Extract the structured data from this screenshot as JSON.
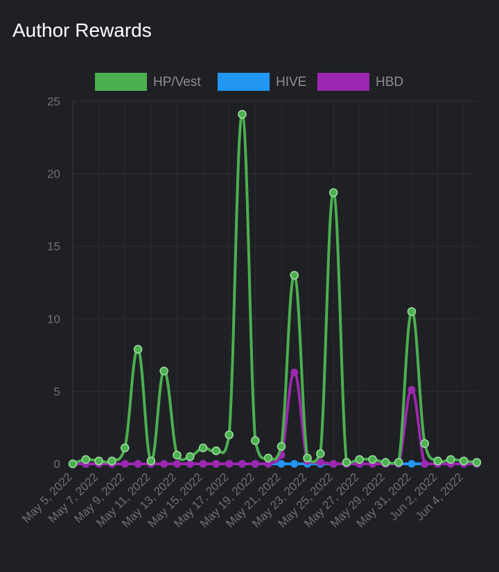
{
  "page": {
    "title": "Author Rewards"
  },
  "chart_data": {
    "type": "line",
    "title": "",
    "xlabel": "",
    "ylabel": "",
    "ylim": [
      0,
      25
    ],
    "yticks": [
      0,
      5,
      10,
      15,
      20,
      25
    ],
    "grid": true,
    "legend": "top-center",
    "x": [
      "May 5, 2022",
      "May 6, 2022",
      "May 7, 2022",
      "May 8, 2022",
      "May 9, 2022",
      "May 10, 2022",
      "May 11, 2022",
      "May 12, 2022",
      "May 13, 2022",
      "May 14, 2022",
      "May 15, 2022",
      "May 16, 2022",
      "May 17, 2022",
      "May 18, 2022",
      "May 19, 2022",
      "May 20, 2022",
      "May 21, 2022",
      "May 22, 2022",
      "May 23, 2022",
      "May 24, 2022",
      "May 25, 2022",
      "May 26, 2022",
      "May 27, 2022",
      "May 28, 2022",
      "May 29, 2022",
      "May 30, 2022",
      "May 31, 2022",
      "Jun 1, 2022",
      "Jun 2, 2022",
      "Jun 3, 2022",
      "Jun 4, 2022",
      "Jun 5, 2022"
    ],
    "xtick_labels": [
      "May 5, 2022",
      "May 7, 2022",
      "May 9, 2022",
      "May 11, 2022",
      "May 13, 2022",
      "May 15, 2022",
      "May 17, 2022",
      "May 19, 2022",
      "May 21, 2022",
      "May 23, 2022",
      "May 25, 2022",
      "May 27, 2022",
      "May 29, 2022",
      "May 31, 2022",
      "Jun 2, 2022",
      "Jun 4, 2022"
    ],
    "series": [
      {
        "name": "HP/Vest",
        "color": "#4caf50",
        "values": [
          0.0,
          0.3,
          0.2,
          0.2,
          1.1,
          7.9,
          0.2,
          6.4,
          0.6,
          0.5,
          1.1,
          0.9,
          2.0,
          24.1,
          1.6,
          0.4,
          1.2,
          13.0,
          0.4,
          0.7,
          18.7,
          0.1,
          0.3,
          0.3,
          0.1,
          0.1,
          10.5,
          1.4,
          0.2,
          0.3,
          0.2,
          0.1
        ]
      },
      {
        "name": "HIVE",
        "color": "#2196f3",
        "values": [
          0,
          0,
          0,
          0,
          0,
          0,
          0,
          0,
          0,
          0,
          0,
          0,
          0,
          0,
          0,
          0,
          0,
          0,
          0,
          0,
          0,
          0,
          0,
          0,
          0,
          0,
          0,
          0,
          0,
          0,
          0,
          0
        ]
      },
      {
        "name": "HBD",
        "color": "#9c27b0",
        "values": [
          0,
          0,
          0,
          0,
          0,
          0,
          0,
          0,
          0,
          0,
          0,
          0,
          0,
          0,
          0,
          0,
          0.6,
          6.3,
          0.2,
          0.1,
          0,
          0,
          0,
          0,
          0,
          0,
          5.1,
          0,
          0,
          0,
          0,
          0
        ]
      }
    ]
  }
}
